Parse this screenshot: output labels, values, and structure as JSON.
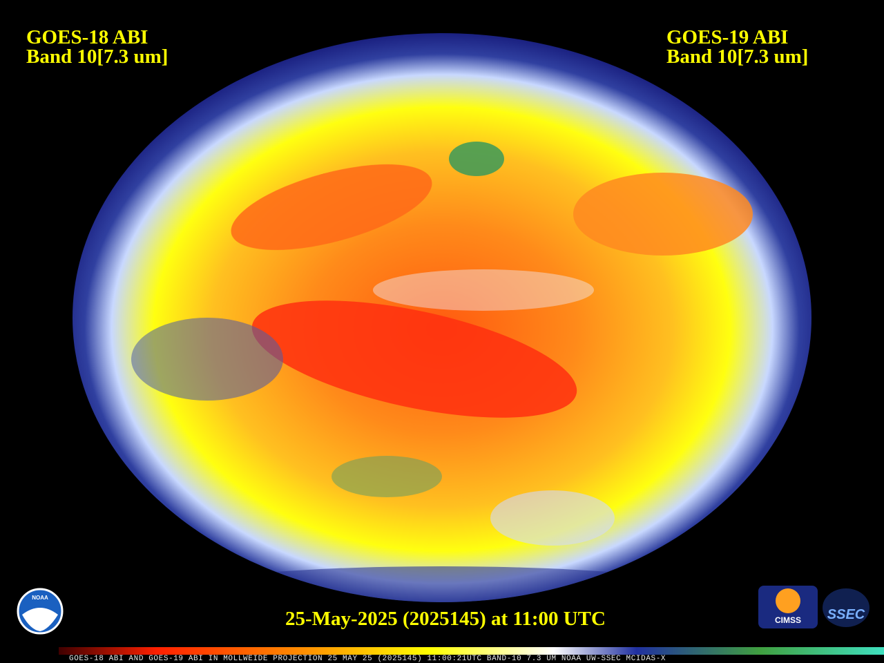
{
  "left_label": {
    "line1": "GOES-18 ABI",
    "line2": "Band 10[7.3 um]"
  },
  "right_label": {
    "line1": "GOES-19 ABI",
    "line2": "Band 10[7.3 um]"
  },
  "timestamp": "25-May-2025 (2025145) at 11:00 UTC",
  "caption": "GOES-18 ABI AND GOES-19 ABI IN MOLLWEIDE PROJECTION 25 MAY 25 (2025145) 11:00:21UTC BAND-10 7.3 UM NOAA UW-SSEC MCIDAS-X",
  "logos": {
    "noaa": "NOAA",
    "cimss": "CIMSS",
    "ssec": "SSEC"
  }
}
